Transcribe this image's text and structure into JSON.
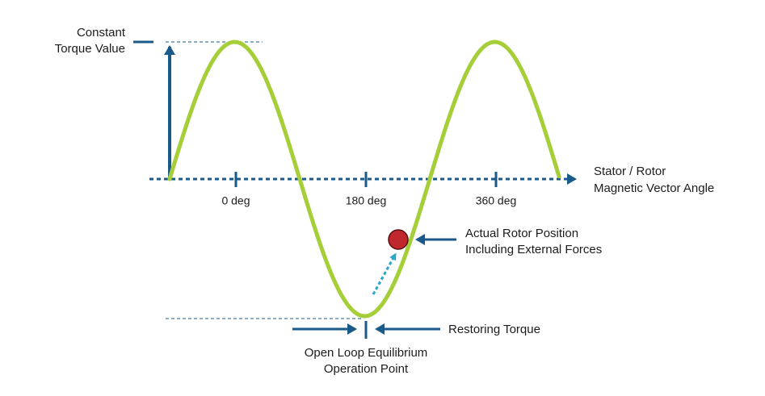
{
  "y_axis_label": [
    "Constant",
    "Torque Value"
  ],
  "x_axis_label": [
    "Stator / Rotor",
    "Magnetic Vector Angle"
  ],
  "ticks": [
    "0 deg",
    "180 deg",
    "360 deg"
  ],
  "rotor_label": [
    "Actual Rotor Position",
    "Including External Forces"
  ],
  "restoring_label": "Restoring Torque",
  "equilibrium_label": [
    "Open Loop Equilibrium",
    "Operation Point"
  ]
}
